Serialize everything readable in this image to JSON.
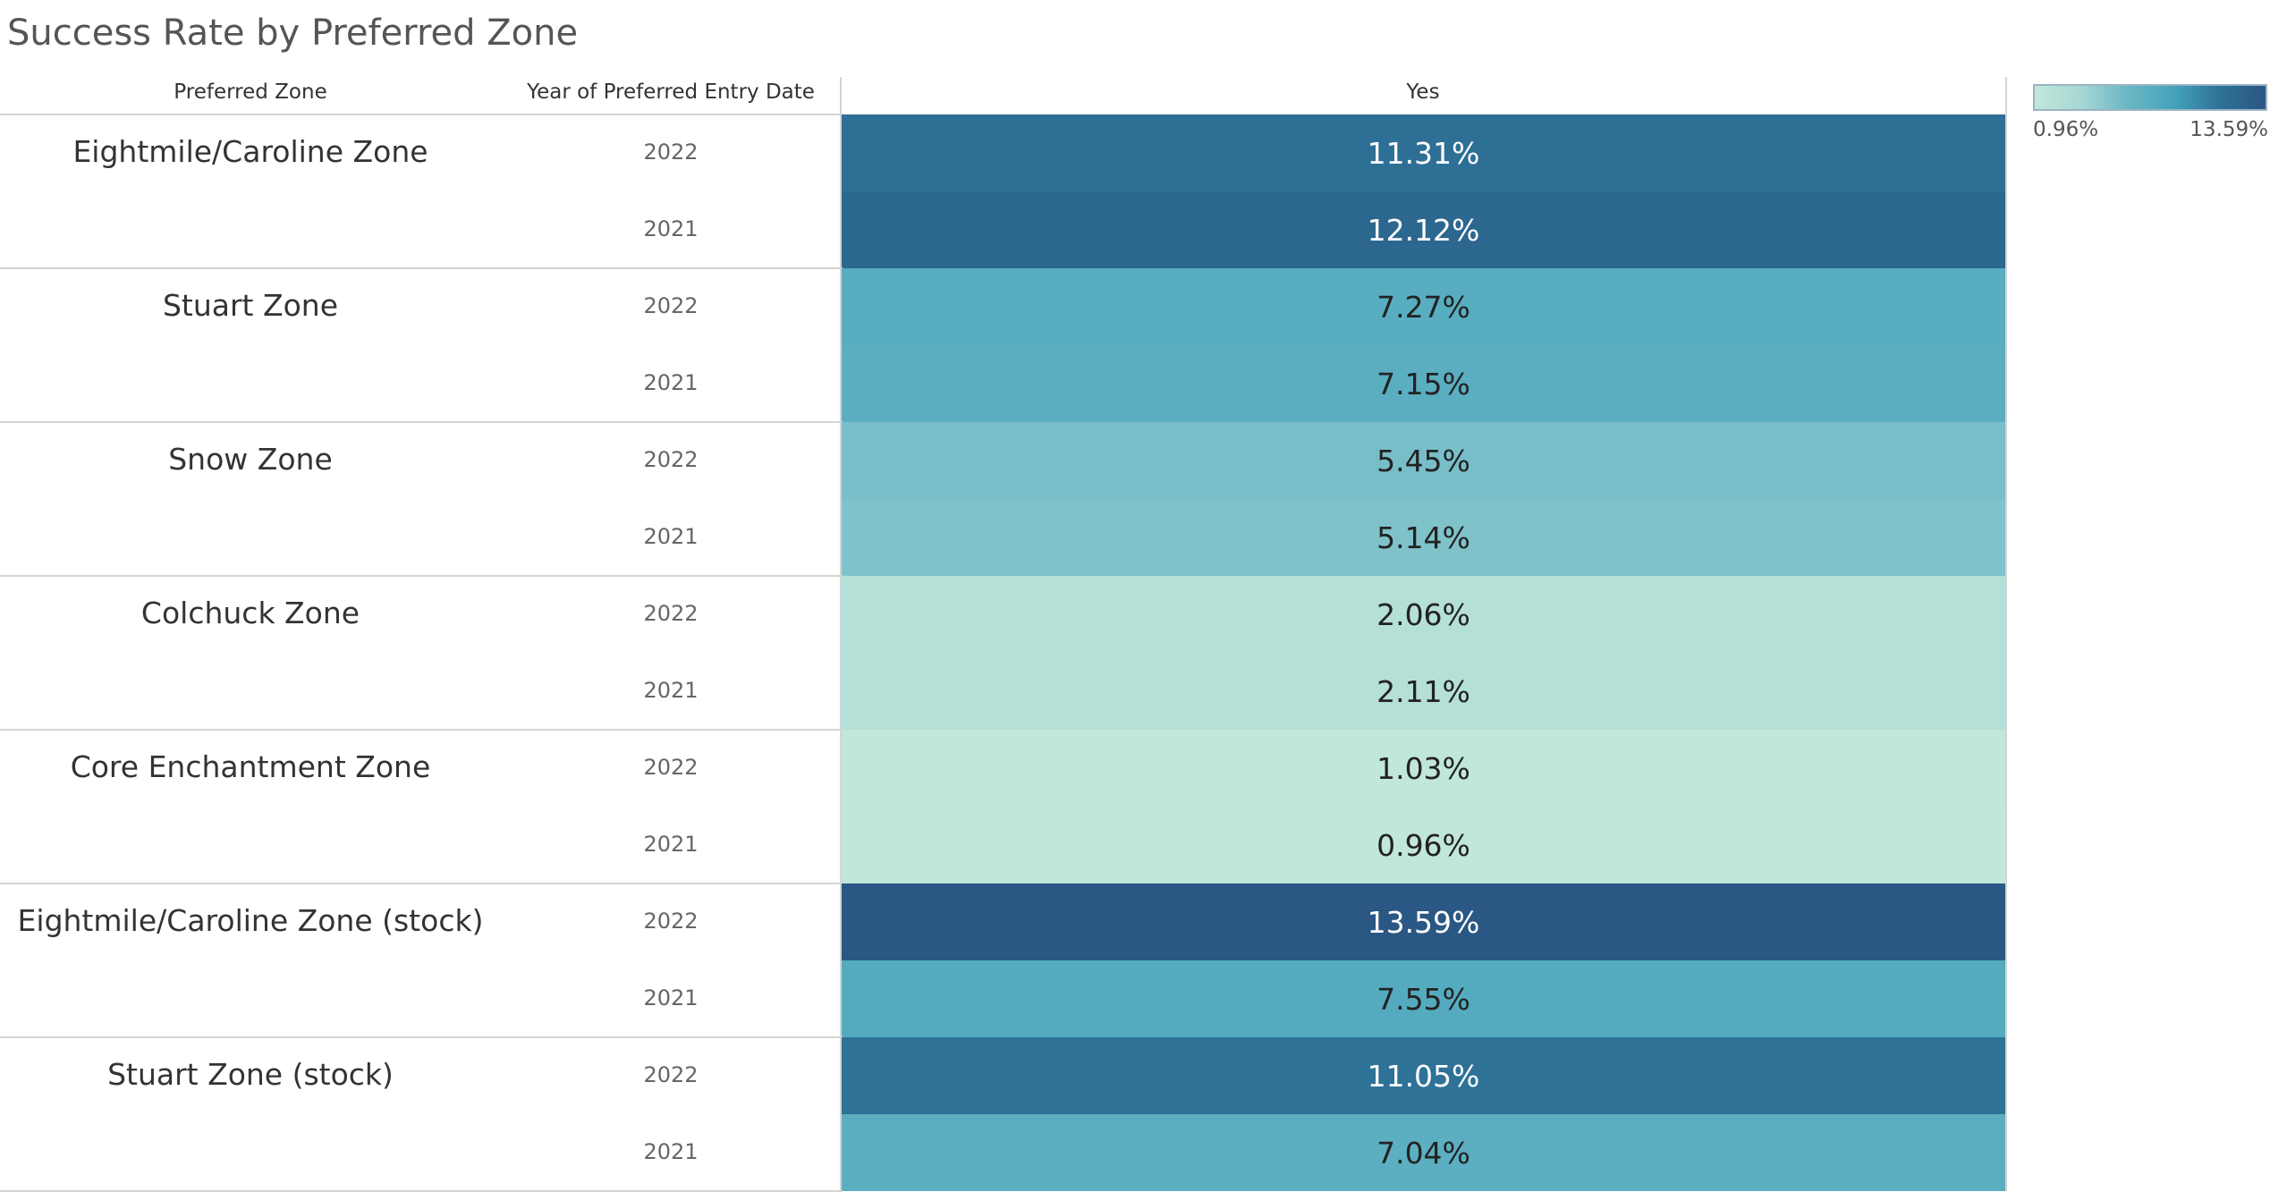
{
  "chart_data": {
    "type": "heatmap",
    "title": "Success Rate by Preferred Zone",
    "row_headers": [
      "Preferred Zone",
      "Year of Preferred Entry Date"
    ],
    "column_header": "Yes",
    "rows": [
      {
        "zone": "Eightmile/Caroline Zone",
        "years": [
          {
            "year": "2022",
            "value": 11.31,
            "label": "11.31%"
          },
          {
            "year": "2021",
            "value": 12.12,
            "label": "12.12%"
          }
        ]
      },
      {
        "zone": "Stuart Zone",
        "years": [
          {
            "year": "2022",
            "value": 7.27,
            "label": "7.27%"
          },
          {
            "year": "2021",
            "value": 7.15,
            "label": "7.15%"
          }
        ]
      },
      {
        "zone": "Snow Zone",
        "years": [
          {
            "year": "2022",
            "value": 5.45,
            "label": "5.45%"
          },
          {
            "year": "2021",
            "value": 5.14,
            "label": "5.14%"
          }
        ]
      },
      {
        "zone": "Colchuck Zone",
        "years": [
          {
            "year": "2022",
            "value": 2.06,
            "label": "2.06%"
          },
          {
            "year": "2021",
            "value": 2.11,
            "label": "2.11%"
          }
        ]
      },
      {
        "zone": "Core Enchantment Zone",
        "years": [
          {
            "year": "2022",
            "value": 1.03,
            "label": "1.03%"
          },
          {
            "year": "2021",
            "value": 0.96,
            "label": "0.96%"
          }
        ]
      },
      {
        "zone": "Eightmile/Caroline Zone (stock)",
        "years": [
          {
            "year": "2022",
            "value": 13.59,
            "label": "13.59%"
          },
          {
            "year": "2021",
            "value": 7.55,
            "label": "7.55%"
          }
        ]
      },
      {
        "zone": "Stuart Zone (stock)",
        "years": [
          {
            "year": "2022",
            "value": 11.05,
            "label": "11.05%"
          },
          {
            "year": "2021",
            "value": 7.04,
            "label": "7.04%"
          }
        ]
      }
    ],
    "color_scale": {
      "min": 0.96,
      "max": 13.59,
      "min_label": "0.96%",
      "max_label": "13.59%",
      "colors": [
        "#c1e7da",
        "#a6d8d4",
        "#6bb7c4",
        "#45a3bc",
        "#2e7298",
        "#2a5783"
      ]
    },
    "legend_position": "top-right"
  }
}
